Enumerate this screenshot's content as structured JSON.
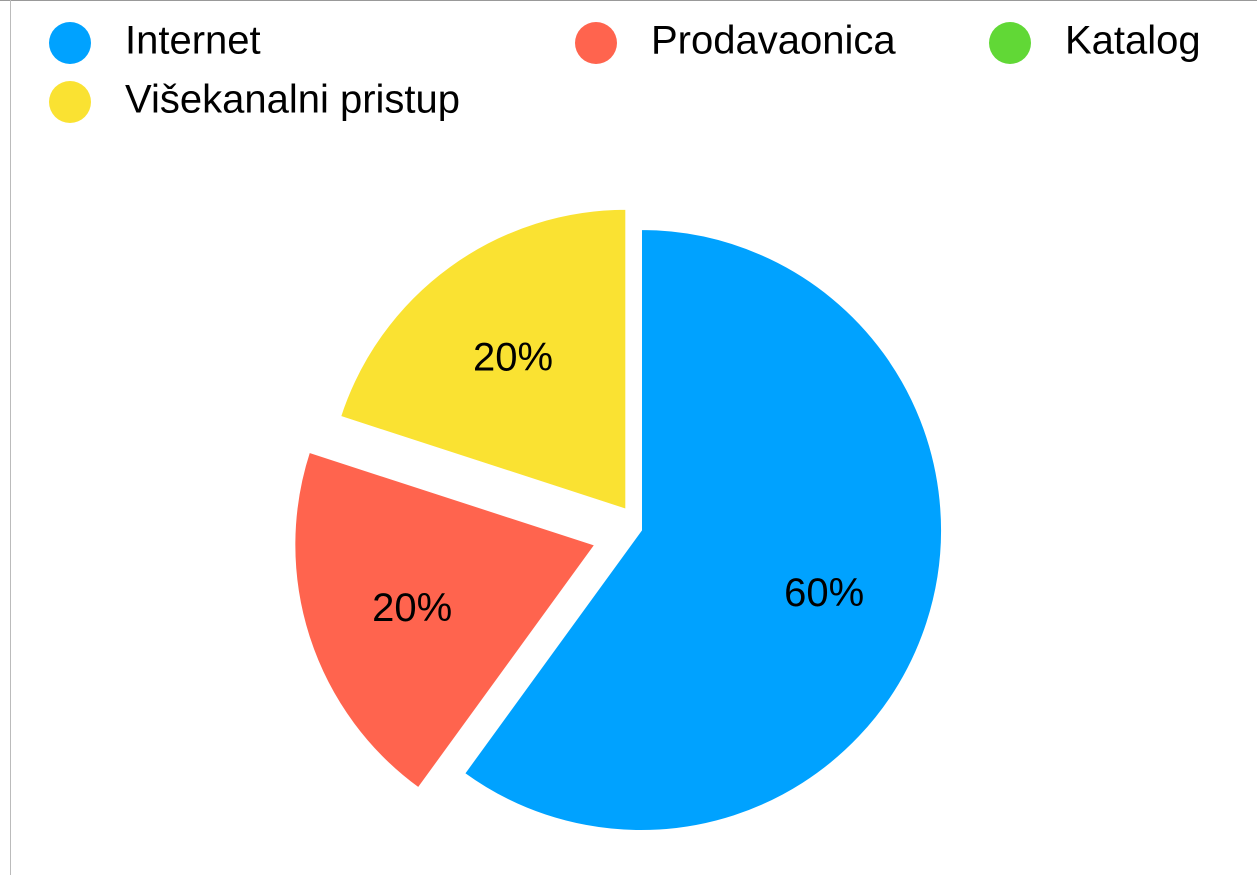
{
  "chart_data": {
    "type": "pie",
    "categories": [
      "Internet",
      "Prodavaonica",
      "Katalog",
      "Višekanalni pristup"
    ],
    "values": [
      60,
      20,
      0,
      20
    ],
    "value_labels": [
      "60%",
      "20%",
      null,
      "20%"
    ],
    "colors": [
      "#00a2ff",
      "#ff644e",
      "#61d836",
      "#fae232"
    ],
    "legend": "top"
  }
}
